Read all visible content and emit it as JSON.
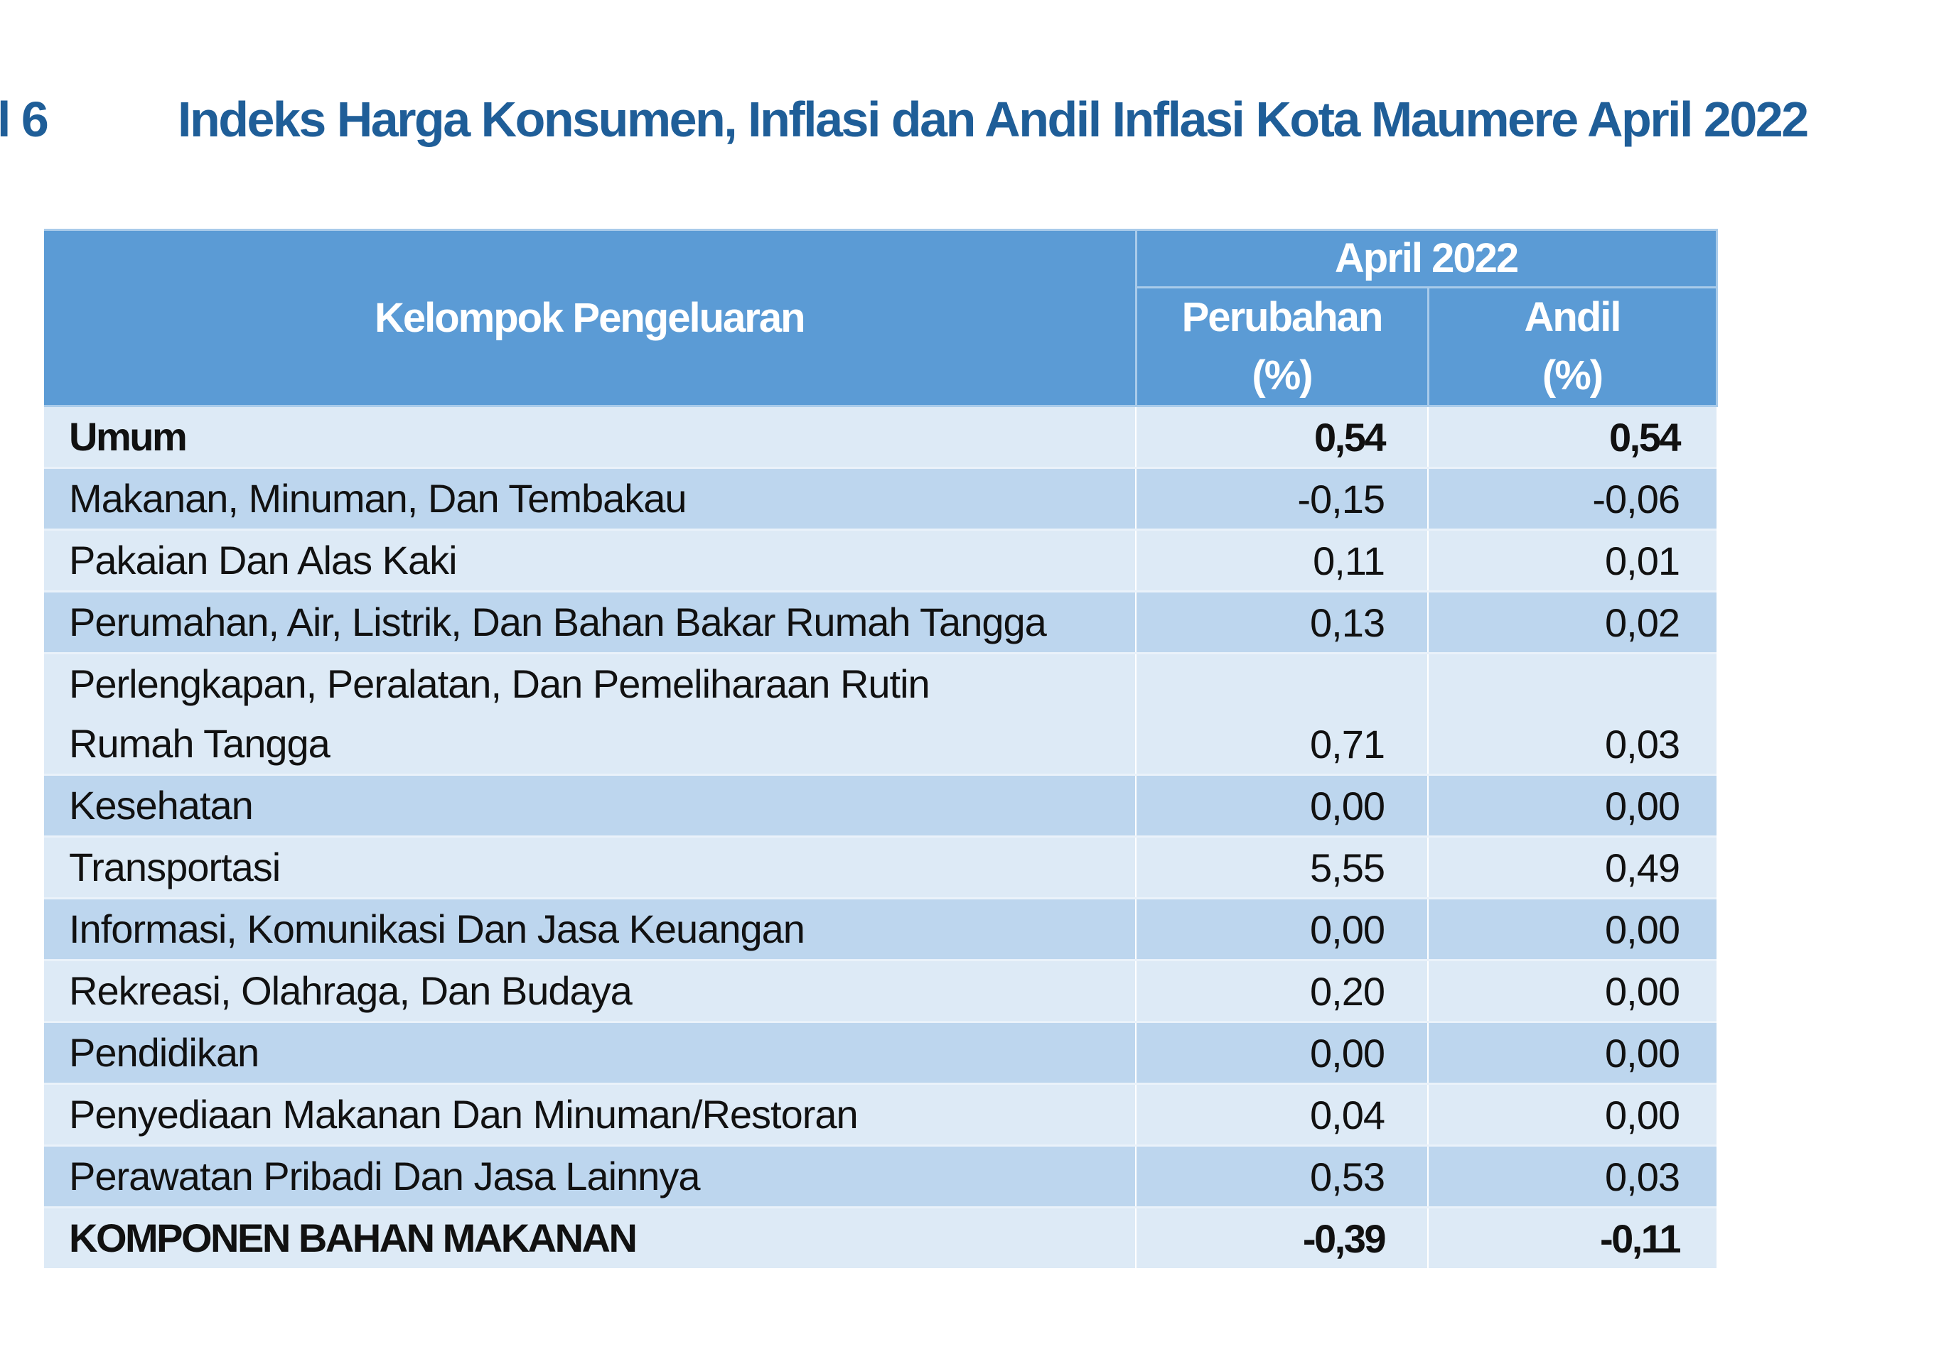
{
  "title": {
    "number": "l 6",
    "text": "Indeks Harga Konsumen, Inflasi dan Andil Inflasi Kota Maumere April 2022",
    "color": "#1f5e98"
  },
  "table": {
    "header": {
      "group_column_label": "Kelompok Pengeluaran",
      "period_label": "April 2022",
      "perubahan_label_line1": "Perubahan",
      "perubahan_label_line2": "(%)",
      "andil_label_line1": "Andil",
      "andil_label_line2": "(%)"
    },
    "colors": {
      "header_bg": "#5b9bd5",
      "row_light": "#ddeaf6",
      "row_dark": "#bdd6ee"
    },
    "rows": [
      {
        "label": "Umum",
        "perubahan": "0,54",
        "andil": "0,54",
        "bold": true
      },
      {
        "label": "Makanan, Minuman, Dan Tembakau",
        "perubahan": "-0,15",
        "andil": "-0,06"
      },
      {
        "label": "Pakaian Dan Alas Kaki",
        "perubahan": "0,11",
        "andil": "0,01"
      },
      {
        "label": "Perumahan, Air, Listrik, Dan Bahan Bakar Rumah Tangga",
        "perubahan": "0,13",
        "andil": "0,02"
      },
      {
        "label_line1": "Perlengkapan, Peralatan, Dan Pemeliharaan Rutin",
        "label_line2": "Rumah Tangga",
        "perubahan": "0,71",
        "andil": "0,03"
      },
      {
        "label": "Kesehatan",
        "perubahan": "0,00",
        "andil": "0,00"
      },
      {
        "label": "Transportasi",
        "perubahan": "5,55",
        "andil": "0,49"
      },
      {
        "label": "Informasi, Komunikasi Dan Jasa Keuangan",
        "perubahan": "0,00",
        "andil": "0,00"
      },
      {
        "label": "Rekreasi, Olahraga, Dan Budaya",
        "perubahan": "0,20",
        "andil": "0,00"
      },
      {
        "label": "Pendidikan",
        "perubahan": "0,00",
        "andil": "0,00"
      },
      {
        "label": "Penyediaan Makanan Dan Minuman/Restoran",
        "perubahan": "0,04",
        "andil": "0,00"
      },
      {
        "label": "Perawatan Pribadi Dan Jasa Lainnya",
        "perubahan": "0,53",
        "andil": "0,03"
      },
      {
        "label": "KOMPONEN BAHAN MAKANAN",
        "perubahan": "-0,39",
        "andil": "-0,11",
        "bold": true
      }
    ]
  }
}
